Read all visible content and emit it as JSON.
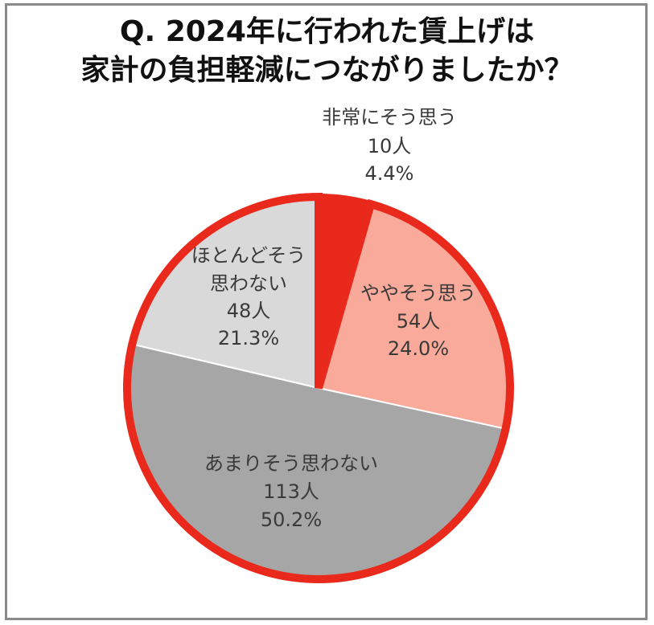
{
  "title_line1": "Q. 2024年に行われた賃上げは",
  "title_line2": "家計の負担軽減につながりましたか？",
  "chart_data": {
    "type": "pie",
    "title": "Q. 2024年に行われた賃上げは家計の負担軽減につながりましたか？",
    "start": "12 o'clock, clockwise",
    "slices": [
      {
        "label": "非常にそう思う",
        "count": "10人",
        "percent": "4.4%",
        "value": 4.4,
        "color": "#e8291c"
      },
      {
        "label": "ややそう思う",
        "count": "54人",
        "percent": "24.0%",
        "value": 24.0,
        "color": "#f9aa9a"
      },
      {
        "label": "あまりそう思わない",
        "count": "113人",
        "percent": "50.2%",
        "value": 50.2,
        "color": "#a6a6a6"
      },
      {
        "label": "ほとんどそう思わない",
        "label_lines": [
          "ほとんどそう",
          "思わない"
        ],
        "count": "48人",
        "percent": "21.3%",
        "value": 21.3,
        "color": "#d9d9d9"
      }
    ],
    "outline_color": "#e8291c"
  }
}
